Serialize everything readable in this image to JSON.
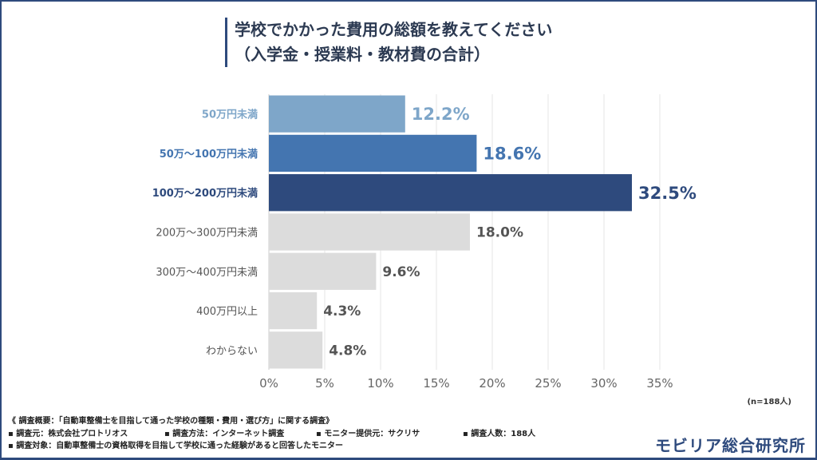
{
  "header": {
    "title_line1": "学校でかかった費用の総額を教えてください",
    "title_line2": "（入学金・授業料・教材費の合計）"
  },
  "chart_data": {
    "type": "bar",
    "orientation": "horizontal",
    "categories": [
      "50万円未満",
      "50万～100万円未満",
      "100万～200万円未満",
      "200万～300万円未満",
      "300万～400万円未満",
      "400万円以上",
      "わからない"
    ],
    "values": [
      12.2,
      18.6,
      32.5,
      18.0,
      9.6,
      4.3,
      4.8
    ],
    "value_labels": [
      "12.2%",
      "18.6%",
      "32.5%",
      "18.0%",
      "9.6%",
      "4.3%",
      "4.8%"
    ],
    "colors": [
      "#7ea6c9",
      "#4475b0",
      "#2e4a7d",
      "#dcdcdc",
      "#dcdcdc",
      "#dcdcdc",
      "#dcdcdc"
    ],
    "label_colors": [
      "#7ea6c9",
      "#4475b0",
      "#2e4a7d",
      "#555555",
      "#555555",
      "#555555",
      "#555555"
    ],
    "xlim": [
      0,
      35
    ],
    "xticks": [
      "0%",
      "5%",
      "10%",
      "15%",
      "20%",
      "25%",
      "30%",
      "35%"
    ],
    "grid": true
  },
  "note": "(n=188人)",
  "footer": {
    "summary": "《 調査概要：「自動車整備士を目指して通った学校の種類・費用・選び方」に関する調査》",
    "source": "▪ 調査元：株式会社プロトリオス",
    "method": "▪ 調査方法：インターネット調査",
    "provider": "▪ モニター提供元：サクリサ",
    "count": "▪ 調査人数：188人",
    "target": "▪ 調査対象：自動車整備士の資格取得を目指して学校に通った経験があると回答したモニター"
  },
  "logo": "モビリア総合研究所"
}
